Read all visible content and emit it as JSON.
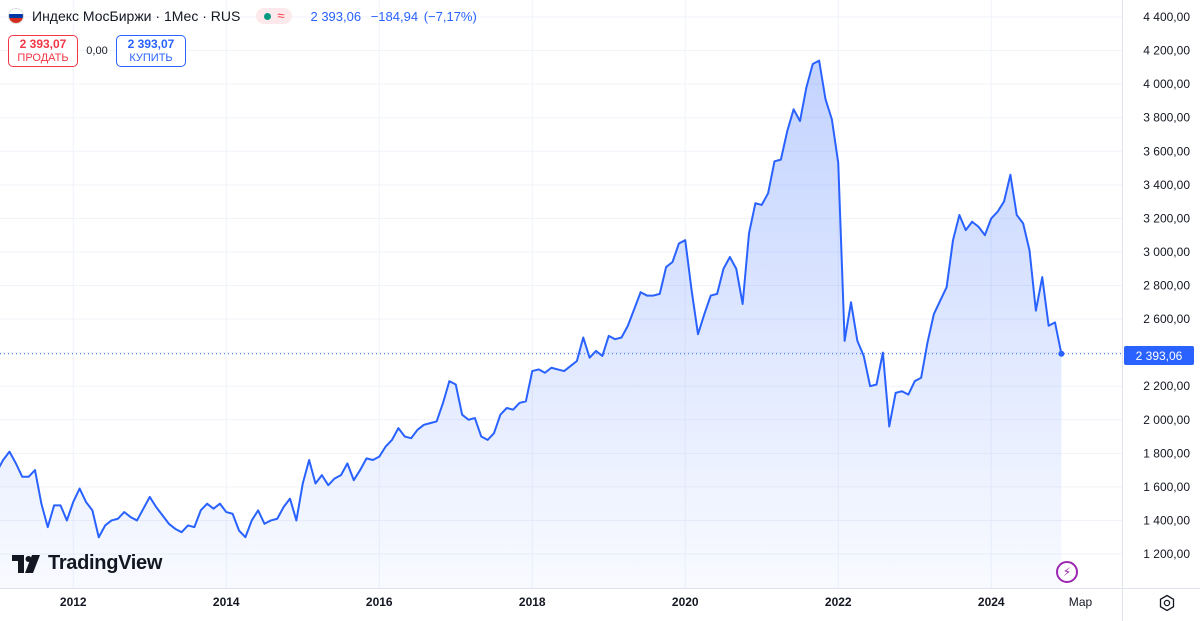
{
  "legend": {
    "symbol": "Индекс МосБиржи · 1Мес · RUS",
    "status_icon_1": "market-status-dot-icon",
    "status_icon_2": "approximate-icon",
    "last": "2 393,06",
    "change": "−184,94",
    "change_pct": "(−7,17%)"
  },
  "trade": {
    "sell_price": "2 393,07",
    "sell_label": "ПРОДАТЬ",
    "spread": "0,00",
    "buy_price": "2 393,07",
    "buy_label": "КУПИТЬ"
  },
  "logo": {
    "text": "TradingView",
    "icon": "tradingview-logo-icon"
  },
  "price_tag": "2 393,06",
  "colors": {
    "line": "#2962ff",
    "sell": "#f23645",
    "buy": "#2962ff",
    "grid": "#f0f3fa",
    "axis_text": "#131722"
  },
  "chart_data": {
    "type": "area",
    "title": "",
    "xlabel": "",
    "ylabel": "",
    "ylim": [
      1100,
      4450
    ],
    "grid": true,
    "y_ticks": [
      "1 200,00",
      "1 400,00",
      "1 600,00",
      "1 800,00",
      "2 000,00",
      "2 200,00",
      "2 400,00",
      "2 600,00",
      "2 800,00",
      "3 000,00",
      "3 200,00",
      "3 400,00",
      "3 600,00",
      "3 800,00",
      "4 000,00",
      "4 200,00",
      "4 400,00"
    ],
    "x_ticks": [
      "2012",
      "2014",
      "2016",
      "2018",
      "2020",
      "2022",
      "2024",
      "Мар"
    ],
    "last_value": 2393.06,
    "series": [
      {
        "name": "",
        "x_start": "2011-01",
        "interval": "1M",
        "values": [
          1690,
          1760,
          1810,
          1740,
          1660,
          1660,
          1700,
          1500,
          1360,
          1490,
          1490,
          1400,
          1510,
          1590,
          1510,
          1460,
          1300,
          1370,
          1400,
          1410,
          1450,
          1420,
          1400,
          1470,
          1540,
          1480,
          1430,
          1380,
          1350,
          1330,
          1370,
          1360,
          1460,
          1500,
          1470,
          1500,
          1450,
          1440,
          1340,
          1300,
          1400,
          1460,
          1380,
          1400,
          1410,
          1480,
          1530,
          1400,
          1620,
          1760,
          1620,
          1670,
          1610,
          1650,
          1670,
          1740,
          1640,
          1700,
          1770,
          1760,
          1780,
          1840,
          1880,
          1950,
          1900,
          1890,
          1940,
          1970,
          1980,
          1990,
          2100,
          2230,
          2210,
          2030,
          2000,
          2010,
          1900,
          1880,
          1920,
          2030,
          2070,
          2060,
          2100,
          2110,
          2290,
          2300,
          2280,
          2310,
          2300,
          2290,
          2320,
          2350,
          2490,
          2370,
          2410,
          2380,
          2500,
          2480,
          2490,
          2560,
          2660,
          2760,
          2740,
          2740,
          2750,
          2910,
          2940,
          3050,
          3070,
          2770,
          2510,
          2630,
          2740,
          2750,
          2900,
          2970,
          2900,
          2690,
          3110,
          3290,
          3280,
          3350,
          3540,
          3550,
          3720,
          3850,
          3780,
          3980,
          4120,
          4140,
          3910,
          3790,
          3530,
          2470,
          2700,
          2470,
          2380,
          2200,
          2210,
          2400,
          1960,
          2160,
          2170,
          2150,
          2230,
          2250,
          2460,
          2630,
          2710,
          2790,
          3070,
          3220,
          3130,
          3180,
          3150,
          3100,
          3200,
          3240,
          3300,
          3460,
          3220,
          3170,
          3010,
          2650,
          2850,
          2560,
          2580,
          2393.06
        ]
      }
    ]
  }
}
